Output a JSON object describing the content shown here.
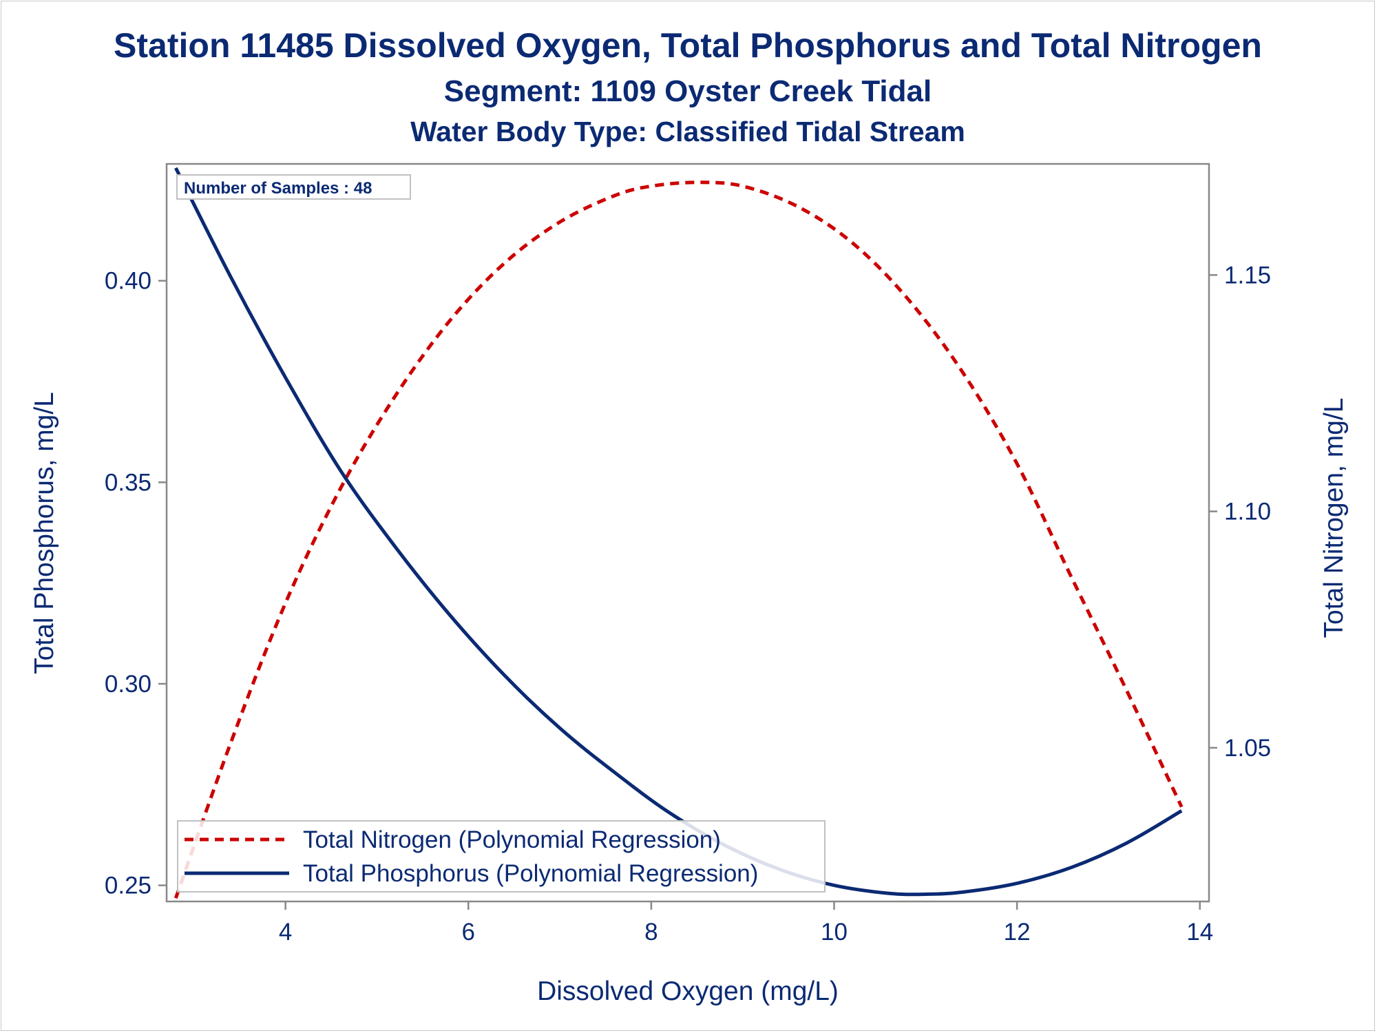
{
  "titles": {
    "line1": "Station 11485  Dissolved Oxygen, Total Phosphorus and Total Nitrogen",
    "line2": "Segment: 1109  Oyster Creek Tidal",
    "line3": "Water Body Type: Classified Tidal Stream"
  },
  "inset_text": "Number of Samples : 48",
  "colors": {
    "text": "#0b2a73",
    "nitrogen": "#cc0000",
    "phosphorus": "#0b2a73",
    "axis": "#888888"
  },
  "chart_data": {
    "type": "line",
    "xlabel": "Dissolved Oxygen (mg/L)",
    "ylabel": "Total Phosphorus, mg/L",
    "y2label": "Total Nitrogen, mg/L",
    "xlim": [
      2.7,
      14.1
    ],
    "ylim": [
      0.246,
      0.429
    ],
    "y2lim": [
      1.0175,
      1.1735
    ],
    "x_ticks": [
      "4",
      "6",
      "8",
      "10",
      "12",
      "14"
    ],
    "y_ticks": [
      "0.25",
      "0.30",
      "0.35",
      "0.40"
    ],
    "y2_ticks": [
      "1.05",
      "1.10",
      "1.15"
    ],
    "grid": false,
    "legend_position": "bottom-left",
    "series": [
      {
        "name": "Total Nitrogen (Polynomial Regression)",
        "axis": "right",
        "style": "dashed",
        "color": "#cc0000",
        "x": [
          2.8,
          3.4,
          4.0,
          4.6,
          5.2,
          5.8,
          6.4,
          7.0,
          7.6,
          8.0,
          8.5,
          9.0,
          9.6,
          10.2,
          10.8,
          11.4,
          12.0,
          12.6,
          13.2,
          13.8
        ],
        "values": [
          1.0182,
          1.051,
          1.0806,
          1.1048,
          1.1244,
          1.1404,
          1.1526,
          1.1612,
          1.1668,
          1.1688,
          1.1696,
          1.1688,
          1.1645,
          1.1568,
          1.1451,
          1.1296,
          1.1101,
          1.0859,
          1.0621,
          1.0375
        ]
      },
      {
        "name": "Total Phosphorus (Polynomial Regression)",
        "axis": "left",
        "style": "solid",
        "color": "#0b2a73",
        "x": [
          2.8,
          3.4,
          4.0,
          4.6,
          5.2,
          5.8,
          6.4,
          7.0,
          7.6,
          8.2,
          8.8,
          9.4,
          10.0,
          10.6,
          11.0,
          11.4,
          12.0,
          12.6,
          13.2,
          13.8
        ],
        "values": [
          0.428,
          0.401,
          0.376,
          0.353,
          0.334,
          0.317,
          0.302,
          0.289,
          0.278,
          0.268,
          0.26,
          0.254,
          0.25,
          0.248,
          0.2478,
          0.2483,
          0.2505,
          0.2545,
          0.2605,
          0.2685
        ]
      }
    ]
  }
}
